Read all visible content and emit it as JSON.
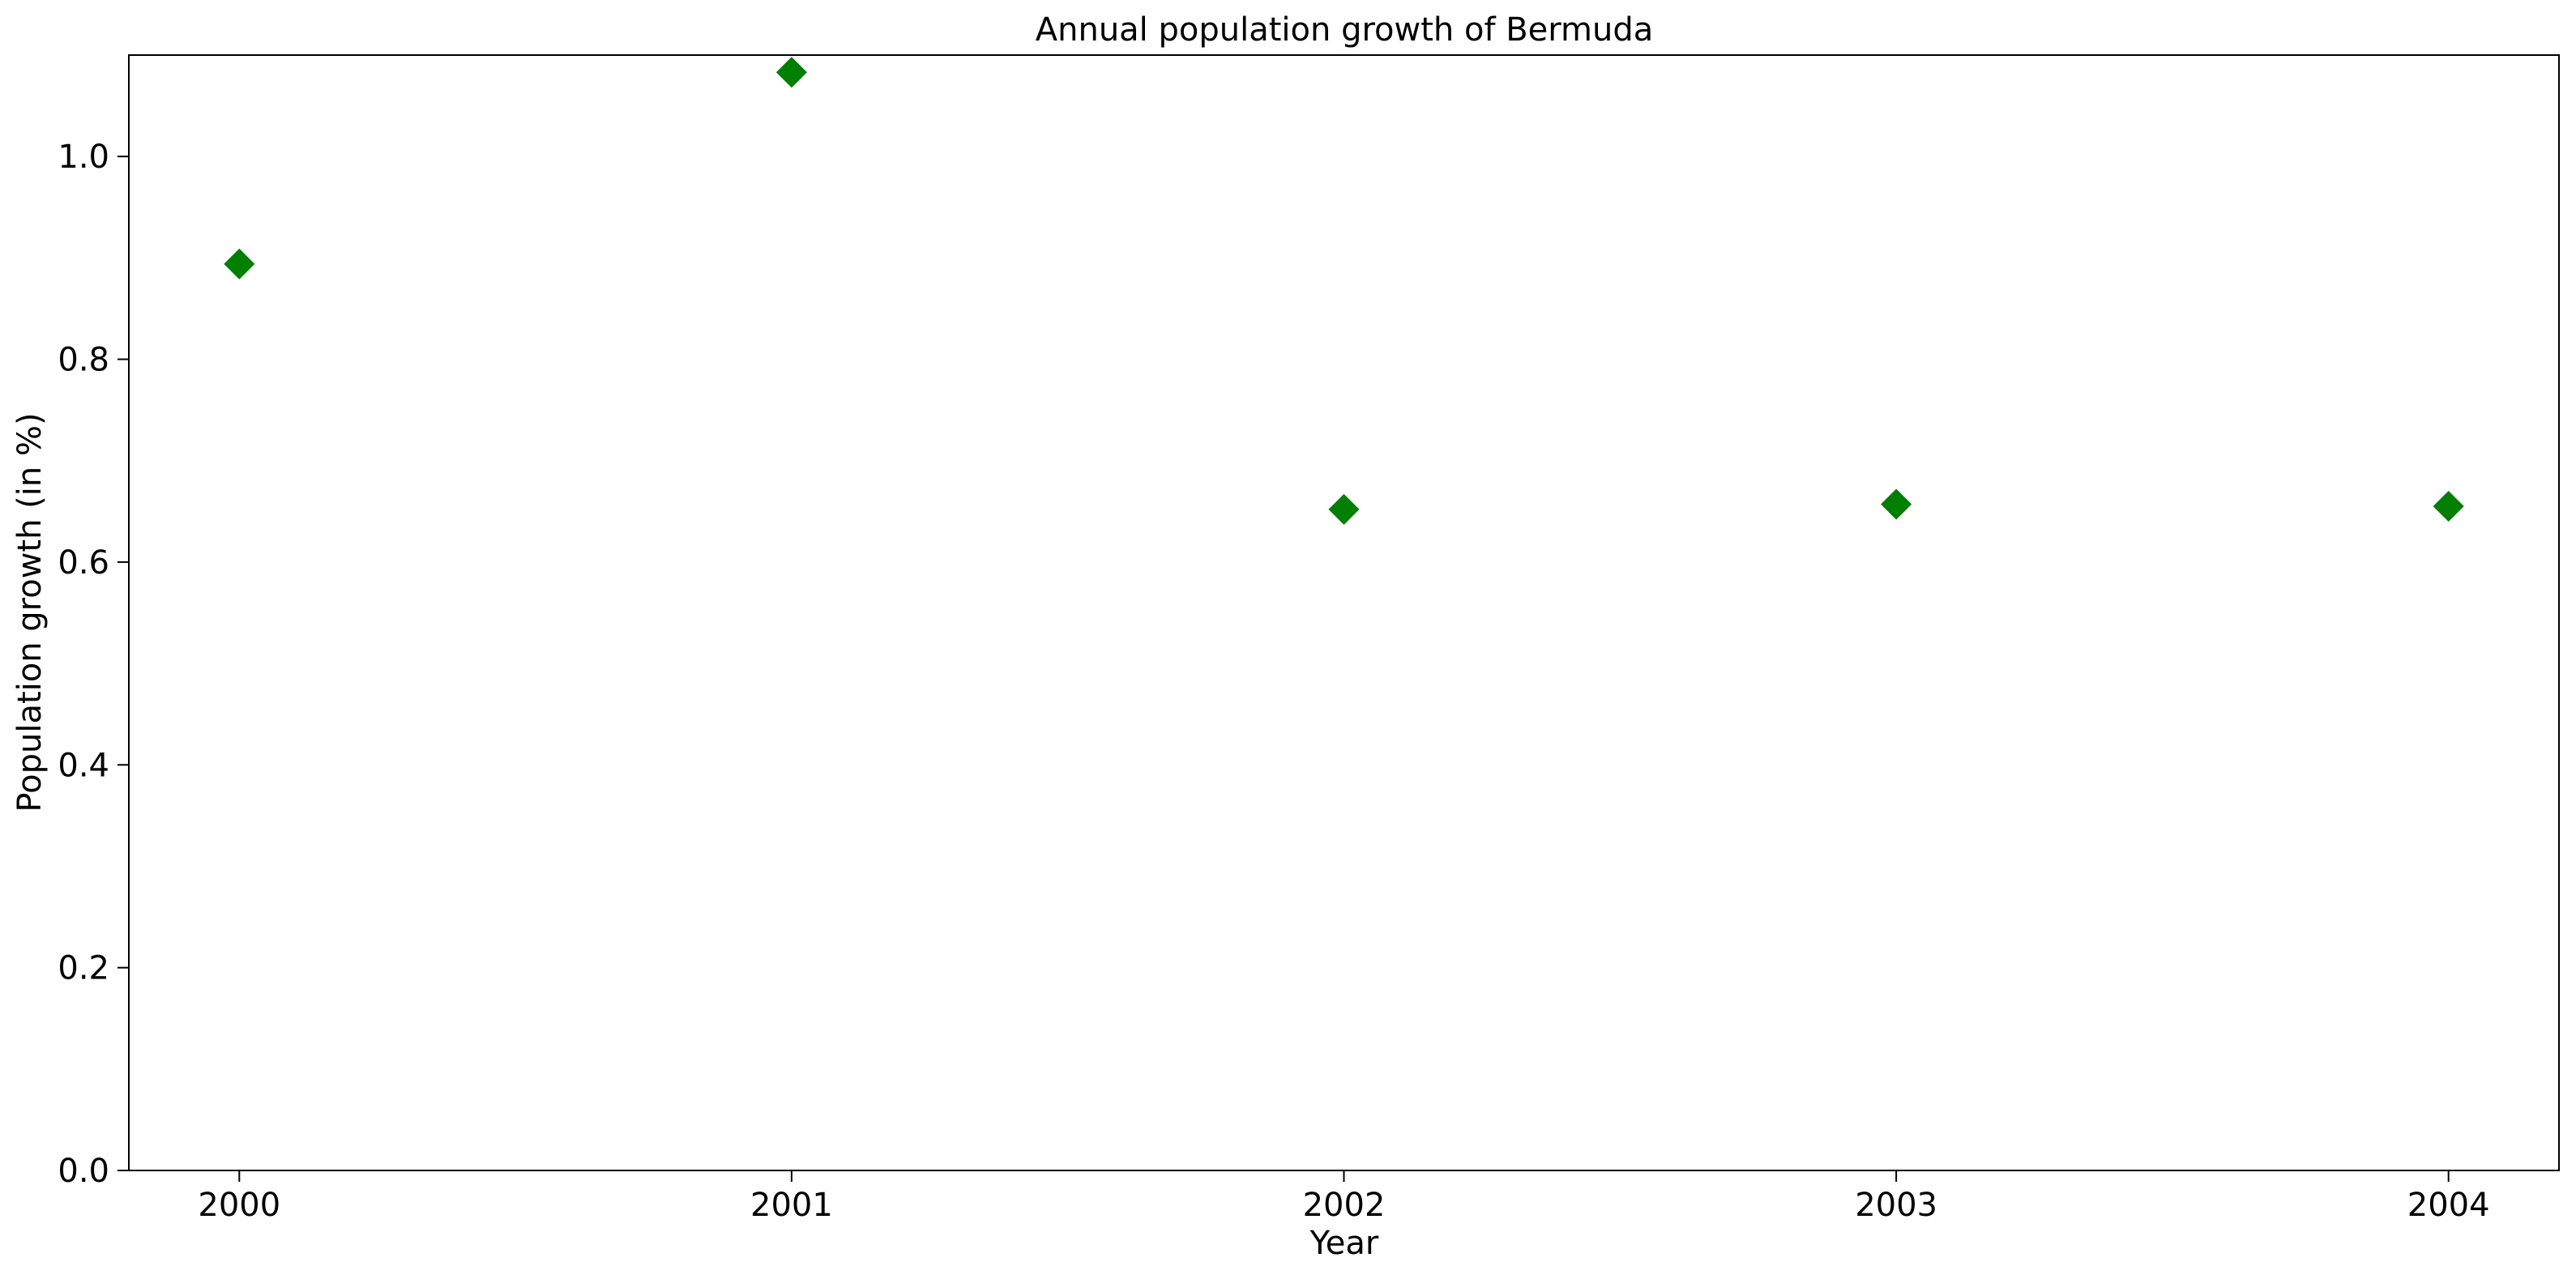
{
  "chart_data": {
    "type": "scatter",
    "title": "Annual population growth of Bermuda",
    "xlabel": "Year",
    "ylabel": "Population growth (in %)",
    "x": [
      "2000",
      "2001",
      "2002",
      "2003",
      "2004"
    ],
    "y": [
      0.894,
      1.083,
      0.652,
      0.657,
      0.655
    ],
    "xlim": [
      1999.8,
      2004.2
    ],
    "ylim": [
      0.0,
      1.1
    ],
    "xticks": [
      "2000",
      "2001",
      "2002",
      "2003",
      "2004"
    ],
    "yticks": [
      "0.0",
      "0.2",
      "0.4",
      "0.6",
      "0.8",
      "1.0"
    ],
    "marker": "diamond",
    "marker_color": "#008000",
    "grid": false,
    "legend": null
  }
}
